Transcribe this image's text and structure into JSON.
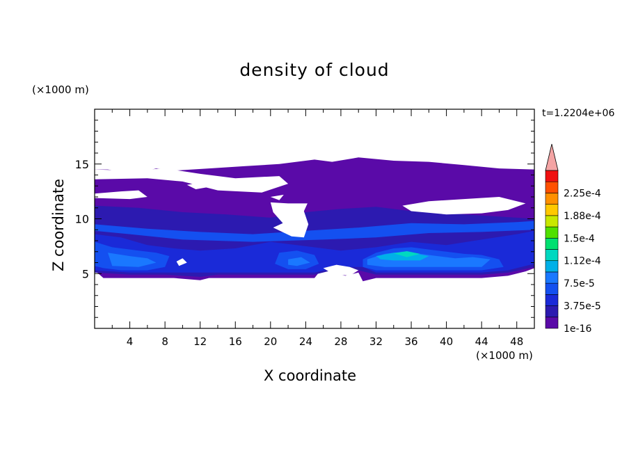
{
  "chart_data": {
    "type": "heatmap",
    "title": "density of cloud",
    "xlabel": "X coordinate",
    "ylabel": "Z coordinate",
    "x_unit": "(×1000 m)",
    "z_unit": "(×1000 m)",
    "time_label": "t=1.2204e+06",
    "xlim": [
      0,
      50
    ],
    "ylim": [
      0,
      20
    ],
    "x_ticks": [
      4,
      8,
      12,
      16,
      20,
      24,
      28,
      32,
      36,
      40,
      44,
      48
    ],
    "y_ticks": [
      5,
      10,
      15
    ],
    "colorbar": {
      "levels": [
        {
          "label": "1e-16",
          "color": "#5a0aa8"
        },
        {
          "label": "",
          "color": "#2c1ab0"
        },
        {
          "label": "3.75e-5",
          "color": "#1a2ad8"
        },
        {
          "label": "",
          "color": "#1450f0"
        },
        {
          "label": "7.5e-5",
          "color": "#1a78ff"
        },
        {
          "label": "",
          "color": "#00b0e8"
        },
        {
          "label": "1.12e-4",
          "color": "#00d8c0"
        },
        {
          "label": "",
          "color": "#00e070"
        },
        {
          "label": "1.5e-4",
          "color": "#50e000"
        },
        {
          "label": "",
          "color": "#c8e800"
        },
        {
          "label": "1.88e-4",
          "color": "#ffc800"
        },
        {
          "label": "",
          "color": "#ff9000"
        },
        {
          "label": "2.25e-4",
          "color": "#ff5000"
        },
        {
          "label": "",
          "color": "#f01010"
        }
      ],
      "overflow_color": "#f4a4a4"
    },
    "regions": [
      {
        "color": "#5a0aa8",
        "points": [
          [
            0,
            14.5
          ],
          [
            1.5,
            14.5
          ],
          [
            3,
            14.3
          ],
          [
            5,
            14.2
          ],
          [
            7,
            14.6
          ],
          [
            9,
            14.4
          ],
          [
            13,
            14.6
          ],
          [
            17,
            14.8
          ],
          [
            21,
            15
          ],
          [
            25,
            15.4
          ],
          [
            27,
            15.2
          ],
          [
            30,
            15.6
          ],
          [
            34,
            15.3
          ],
          [
            38,
            15.2
          ],
          [
            42,
            14.9
          ],
          [
            46,
            14.6
          ],
          [
            50,
            14.5
          ],
          [
            50,
            5.5
          ],
          [
            49,
            5.2
          ],
          [
            47,
            4.8
          ],
          [
            44,
            4.6
          ],
          [
            41,
            4.6
          ],
          [
            38,
            4.6
          ],
          [
            35,
            4.6
          ],
          [
            32,
            4.6
          ],
          [
            30.5,
            4.3
          ],
          [
            30,
            5.1
          ],
          [
            28.5,
            4.8
          ],
          [
            27,
            5.2
          ],
          [
            26,
            5.6
          ],
          [
            25,
            4.6
          ],
          [
            22,
            4.6
          ],
          [
            18,
            4.6
          ],
          [
            13,
            4.6
          ],
          [
            12,
            4.4
          ],
          [
            9,
            4.6
          ],
          [
            5,
            4.6
          ],
          [
            1,
            4.6
          ],
          [
            0,
            5.3
          ]
        ]
      },
      {
        "color": "#2c1ab0",
        "points": [
          [
            0,
            11.2
          ],
          [
            5,
            11
          ],
          [
            10,
            10.6
          ],
          [
            15,
            10.4
          ],
          [
            20,
            10.1
          ],
          [
            24,
            10.6
          ],
          [
            28,
            10.9
          ],
          [
            32,
            11.1
          ],
          [
            36,
            10.7
          ],
          [
            40,
            10.5
          ],
          [
            44,
            10.3
          ],
          [
            48,
            10.1
          ],
          [
            50,
            10
          ],
          [
            50,
            5.6
          ],
          [
            47,
            5.1
          ],
          [
            44,
            4.9
          ],
          [
            40,
            4.9
          ],
          [
            36,
            4.9
          ],
          [
            32,
            4.9
          ],
          [
            30,
            5.3
          ],
          [
            27,
            5.3
          ],
          [
            25,
            4.9
          ],
          [
            20,
            4.9
          ],
          [
            14,
            4.9
          ],
          [
            12,
            4.7
          ],
          [
            8,
            4.9
          ],
          [
            4,
            4.9
          ],
          [
            0,
            5.1
          ]
        ]
      },
      {
        "color": "#1a2ad8",
        "points": [
          [
            0,
            8.6
          ],
          [
            3,
            8.3
          ],
          [
            6,
            7.6
          ],
          [
            9,
            7.3
          ],
          [
            12,
            7.1
          ],
          [
            16,
            7.3
          ],
          [
            20,
            7.9
          ],
          [
            24,
            7.5
          ],
          [
            28,
            7.1
          ],
          [
            32,
            7.4
          ],
          [
            36,
            7.9
          ],
          [
            40,
            7.6
          ],
          [
            44,
            8.1
          ],
          [
            48,
            8.6
          ],
          [
            50,
            8.9
          ],
          [
            50,
            5.9
          ],
          [
            47,
            5.3
          ],
          [
            44,
            5.1
          ],
          [
            40,
            5.1
          ],
          [
            36,
            5.1
          ],
          [
            32,
            5.1
          ],
          [
            30.5,
            5.6
          ],
          [
            28,
            5.6
          ],
          [
            25,
            5.1
          ],
          [
            22,
            5.1
          ],
          [
            18,
            5.1
          ],
          [
            14,
            5.1
          ],
          [
            12,
            5.1
          ],
          [
            8,
            5.1
          ],
          [
            4,
            5.1
          ],
          [
            0,
            5.3
          ]
        ]
      },
      {
        "color": "#1450f0",
        "points": [
          [
            0,
            7.9
          ],
          [
            2,
            7.4
          ],
          [
            5,
            7.1
          ],
          [
            7,
            6.9
          ],
          [
            8.5,
            6.6
          ],
          [
            8,
            5.6
          ],
          [
            6,
            5.3
          ],
          [
            3,
            5.3
          ],
          [
            1,
            5.5
          ],
          [
            0,
            5.7
          ]
        ]
      },
      {
        "color": "#1450f0",
        "points": [
          [
            21,
            6.9
          ],
          [
            23,
            7.1
          ],
          [
            25,
            6.7
          ],
          [
            25.5,
            5.9
          ],
          [
            24,
            5.4
          ],
          [
            22,
            5.4
          ],
          [
            20.5,
            5.9
          ]
        ]
      },
      {
        "color": "#1450f0",
        "points": [
          [
            30.5,
            6.3
          ],
          [
            32,
            6.9
          ],
          [
            34,
            7.3
          ],
          [
            36,
            7.4
          ],
          [
            38,
            7.2
          ],
          [
            40,
            7.0
          ],
          [
            42,
            6.8
          ],
          [
            44,
            6.7
          ],
          [
            46,
            6.3
          ],
          [
            46.5,
            5.6
          ],
          [
            44,
            5.3
          ],
          [
            40,
            5.3
          ],
          [
            36,
            5.3
          ],
          [
            32,
            5.3
          ],
          [
            30.5,
            5.6
          ]
        ]
      },
      {
        "color": "#1a78ff",
        "points": [
          [
            1.5,
            6.9
          ],
          [
            4,
            6.6
          ],
          [
            6,
            6.4
          ],
          [
            7,
            6.0
          ],
          [
            5,
            5.6
          ],
          [
            2,
            5.7
          ]
        ]
      },
      {
        "color": "#1a78ff",
        "points": [
          [
            22,
            6.3
          ],
          [
            23.5,
            6.5
          ],
          [
            24.5,
            6.0
          ],
          [
            23,
            5.7
          ],
          [
            22,
            5.8
          ]
        ]
      },
      {
        "color": "#1a78ff",
        "points": [
          [
            31,
            6.3
          ],
          [
            33,
            6.8
          ],
          [
            35,
            7.0
          ],
          [
            37,
            6.8
          ],
          [
            39,
            6.6
          ],
          [
            41,
            6.4
          ],
          [
            43,
            6.5
          ],
          [
            45,
            6.3
          ],
          [
            44,
            5.6
          ],
          [
            40,
            5.6
          ],
          [
            36,
            5.6
          ],
          [
            33,
            5.6
          ],
          [
            31,
            5.8
          ]
        ]
      },
      {
        "color": "#00b0e8",
        "points": [
          [
            32,
            6.6
          ],
          [
            34,
            6.9
          ],
          [
            36,
            6.9
          ],
          [
            38,
            6.6
          ],
          [
            37,
            6.2
          ],
          [
            34,
            6.2
          ],
          [
            32.5,
            6.3
          ]
        ]
      },
      {
        "color": "#00d8c0",
        "points": [
          [
            34,
            6.85
          ],
          [
            35.5,
            7.05
          ],
          [
            37,
            6.8
          ],
          [
            35.5,
            6.5
          ]
        ]
      },
      {
        "color": "#1450f0",
        "points": [
          [
            0,
            9.5
          ],
          [
            6,
            9.1
          ],
          [
            12,
            8.8
          ],
          [
            18,
            8.6
          ],
          [
            24,
            8.9
          ],
          [
            30,
            9.2
          ],
          [
            36,
            9.6
          ],
          [
            42,
            9.5
          ],
          [
            48,
            9.7
          ],
          [
            50,
            9.8
          ],
          [
            50,
            9.0
          ],
          [
            44,
            8.8
          ],
          [
            38,
            8.7
          ],
          [
            32,
            8.3
          ],
          [
            26,
            8.1
          ],
          [
            18,
            7.9
          ],
          [
            10,
            8.1
          ],
          [
            4,
            8.6
          ],
          [
            0,
            8.9
          ]
        ]
      },
      {
        "color": "#ffffff",
        "points": [
          [
            0,
            13.6
          ],
          [
            6,
            13.7
          ],
          [
            10,
            13.4
          ],
          [
            14,
            12.6
          ],
          [
            19,
            12.4
          ],
          [
            22,
            13.2
          ],
          [
            21,
            13.9
          ],
          [
            16,
            13.7
          ],
          [
            12,
            14.1
          ],
          [
            8,
            14.6
          ],
          [
            4,
            14.4
          ],
          [
            0,
            14.5
          ]
        ]
      },
      {
        "color": "#ffffff",
        "points": [
          [
            0,
            12.3
          ],
          [
            3,
            12.5
          ],
          [
            5,
            12.6
          ],
          [
            6,
            12.0
          ],
          [
            4,
            11.8
          ],
          [
            0,
            11.9
          ]
        ]
      },
      {
        "color": "#ffffff",
        "points": [
          [
            10.5,
            13.1
          ],
          [
            12,
            13.3
          ],
          [
            13,
            12.9
          ],
          [
            11.5,
            12.7
          ]
        ]
      },
      {
        "color": "#ffffff",
        "points": [
          [
            20,
            12.0
          ],
          [
            21.5,
            12.2
          ],
          [
            21,
            11.7
          ]
        ]
      },
      {
        "color": "#ffffff",
        "points": [
          [
            22.4,
            8.4
          ],
          [
            23.8,
            8.3
          ],
          [
            24.3,
            9.5
          ],
          [
            23.8,
            10.7
          ],
          [
            24.2,
            11.4
          ],
          [
            22,
            11.4
          ],
          [
            20,
            11.5
          ],
          [
            20.3,
            10.6
          ],
          [
            21.4,
            9.6
          ],
          [
            20.3,
            9.2
          ]
        ]
      },
      {
        "color": "#ffffff",
        "points": [
          [
            36,
            10.7
          ],
          [
            40,
            10.4
          ],
          [
            44,
            10.5
          ],
          [
            47,
            10.8
          ],
          [
            49,
            11.4
          ],
          [
            46,
            12.0
          ],
          [
            42,
            11.8
          ],
          [
            38,
            11.6
          ],
          [
            35,
            11.2
          ]
        ]
      },
      {
        "color": "#ffffff",
        "points": [
          [
            26,
            5.5
          ],
          [
            27.5,
            5.8
          ],
          [
            29,
            5.6
          ],
          [
            30,
            5.3
          ],
          [
            29,
            4.8
          ],
          [
            27,
            5.0
          ]
        ]
      },
      {
        "color": "#ffffff",
        "points": [
          [
            9.3,
            6.1
          ],
          [
            10,
            6.4
          ],
          [
            10.5,
            6.0
          ],
          [
            9.6,
            5.7
          ]
        ]
      }
    ]
  }
}
